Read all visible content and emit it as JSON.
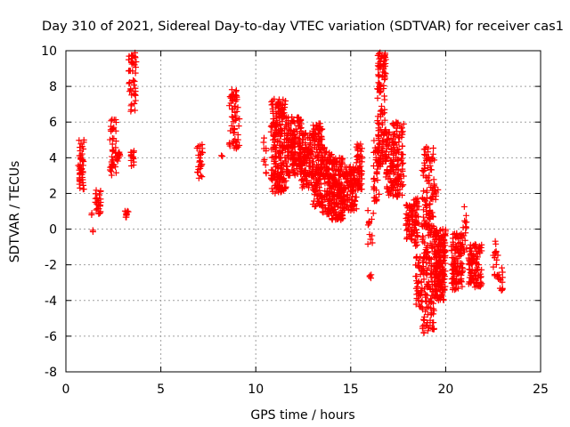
{
  "chart_data": {
    "type": "scatter",
    "title": "Day 310 of 2021, Sidereal Day-to-day VTEC variation (SDTVAR) for receiver cas1",
    "xlabel": "GPS time / hours",
    "ylabel": "SDTVAR / TECUs",
    "xlim": [
      0,
      25
    ],
    "ylim": [
      -8,
      10
    ],
    "xticks": [
      0,
      5,
      10,
      15,
      20,
      25
    ],
    "yticks": [
      -8,
      -6,
      -4,
      -2,
      0,
      2,
      4,
      6,
      8,
      10
    ],
    "grid": true,
    "marker": "+",
    "color": "#ff0000",
    "clusters": [
      {
        "x": [
          0.65,
          0.95
        ],
        "y": [
          2.2,
          5.0
        ],
        "n": 45
      },
      {
        "x": [
          1.35,
          1.45
        ],
        "y": [
          -0.2,
          0.9
        ],
        "n": 4
      },
      {
        "x": [
          1.55,
          1.85
        ],
        "y": [
          0.8,
          2.2
        ],
        "n": 25
      },
      {
        "x": [
          2.3,
          2.65
        ],
        "y": [
          3.0,
          6.2
        ],
        "n": 40
      },
      {
        "x": [
          2.65,
          2.85
        ],
        "y": [
          3.8,
          4.5
        ],
        "n": 15
      },
      {
        "x": [
          3.1,
          3.3
        ],
        "y": [
          0.6,
          1.2
        ],
        "n": 10
      },
      {
        "x": [
          3.3,
          3.7
        ],
        "y": [
          6.5,
          9.9
        ],
        "n": 45
      },
      {
        "x": [
          3.4,
          3.6
        ],
        "y": [
          3.5,
          4.6
        ],
        "n": 15
      },
      {
        "x": [
          6.9,
          7.2
        ],
        "y": [
          2.8,
          4.8
        ],
        "n": 25
      },
      {
        "x": [
          8.1,
          8.3
        ],
        "y": [
          4.0,
          4.3
        ],
        "n": 2
      },
      {
        "x": [
          8.6,
          9.15
        ],
        "y": [
          4.5,
          8.0
        ],
        "n": 60
      },
      {
        "x": [
          10.4,
          10.6
        ],
        "y": [
          3.0,
          5.2
        ],
        "n": 10
      },
      {
        "x": [
          10.8,
          11.6
        ],
        "y": [
          2.0,
          7.3
        ],
        "n": 220
      },
      {
        "x": [
          11.6,
          12.4
        ],
        "y": [
          3.0,
          6.3
        ],
        "n": 160
      },
      {
        "x": [
          12.4,
          13.0
        ],
        "y": [
          2.3,
          5.4
        ],
        "n": 110
      },
      {
        "x": [
          13.0,
          13.5
        ],
        "y": [
          1.2,
          6.0
        ],
        "n": 140
      },
      {
        "x": [
          13.5,
          14.0
        ],
        "y": [
          0.8,
          4.6
        ],
        "n": 110
      },
      {
        "x": [
          14.0,
          14.6
        ],
        "y": [
          0.5,
          4.0
        ],
        "n": 160
      },
      {
        "x": [
          14.6,
          15.3
        ],
        "y": [
          1.0,
          3.5
        ],
        "n": 120
      },
      {
        "x": [
          15.3,
          15.6
        ],
        "y": [
          2.0,
          4.8
        ],
        "n": 50
      },
      {
        "x": [
          15.9,
          16.2
        ],
        "y": [
          -1.0,
          1.1
        ],
        "n": 12
      },
      {
        "x": [
          16.0,
          16.1
        ],
        "y": [
          -2.8,
          -2.3
        ],
        "n": 4
      },
      {
        "x": [
          16.2,
          16.5
        ],
        "y": [
          1.5,
          5.0
        ],
        "n": 40
      },
      {
        "x": [
          16.4,
          16.85
        ],
        "y": [
          3.5,
          9.9
        ],
        "n": 120
      },
      {
        "x": [
          16.85,
          17.2
        ],
        "y": [
          1.5,
          5.5
        ],
        "n": 60
      },
      {
        "x": [
          17.2,
          17.8
        ],
        "y": [
          1.8,
          6.0
        ],
        "n": 110
      },
      {
        "x": [
          17.9,
          18.3
        ],
        "y": [
          -0.6,
          1.4
        ],
        "n": 50
      },
      {
        "x": [
          18.3,
          18.6
        ],
        "y": [
          -1.0,
          1.8
        ],
        "n": 40
      },
      {
        "x": [
          18.4,
          18.75
        ],
        "y": [
          -4.5,
          -1.0
        ],
        "n": 40
      },
      {
        "x": [
          18.75,
          19.4
        ],
        "y": [
          -6.0,
          4.6
        ],
        "n": 230
      },
      {
        "x": [
          19.4,
          20.0
        ],
        "y": [
          -4.0,
          0.0
        ],
        "n": 200
      },
      {
        "x": [
          19.4,
          19.6
        ],
        "y": [
          1.5,
          2.4
        ],
        "n": 8
      },
      {
        "x": [
          20.3,
          20.9
        ],
        "y": [
          -3.4,
          -0.2
        ],
        "n": 120
      },
      {
        "x": [
          20.9,
          21.1
        ],
        "y": [
          -1.5,
          1.3
        ],
        "n": 15
      },
      {
        "x": [
          21.2,
          21.9
        ],
        "y": [
          -3.3,
          -0.8
        ],
        "n": 100
      },
      {
        "x": [
          22.5,
          22.8
        ],
        "y": [
          -2.8,
          -0.6
        ],
        "n": 20
      },
      {
        "x": [
          22.8,
          23.0
        ],
        "y": [
          -3.5,
          -2.0
        ],
        "n": 12
      }
    ]
  }
}
